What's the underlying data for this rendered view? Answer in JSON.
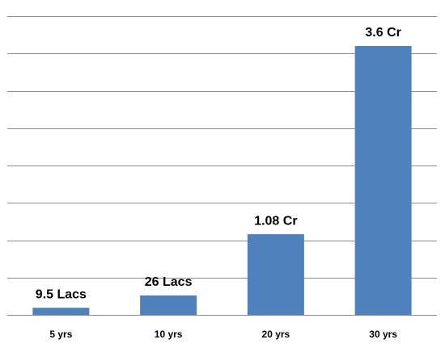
{
  "chart_data": {
    "type": "bar",
    "categories": [
      "5 yrs",
      "10 yrs",
      "20 yrs",
      "30 yrs"
    ],
    "values": [
      9.5,
      26,
      108,
      360
    ],
    "value_labels": [
      "9.5 Lacs",
      "26 Lacs",
      "1.08 Cr",
      "3.6 Cr"
    ],
    "color": "#4f81bd",
    "ylim": [
      0,
      400
    ],
    "yticks": [
      0,
      50,
      100,
      150,
      200,
      250,
      300,
      350,
      400
    ],
    "grid": true
  }
}
